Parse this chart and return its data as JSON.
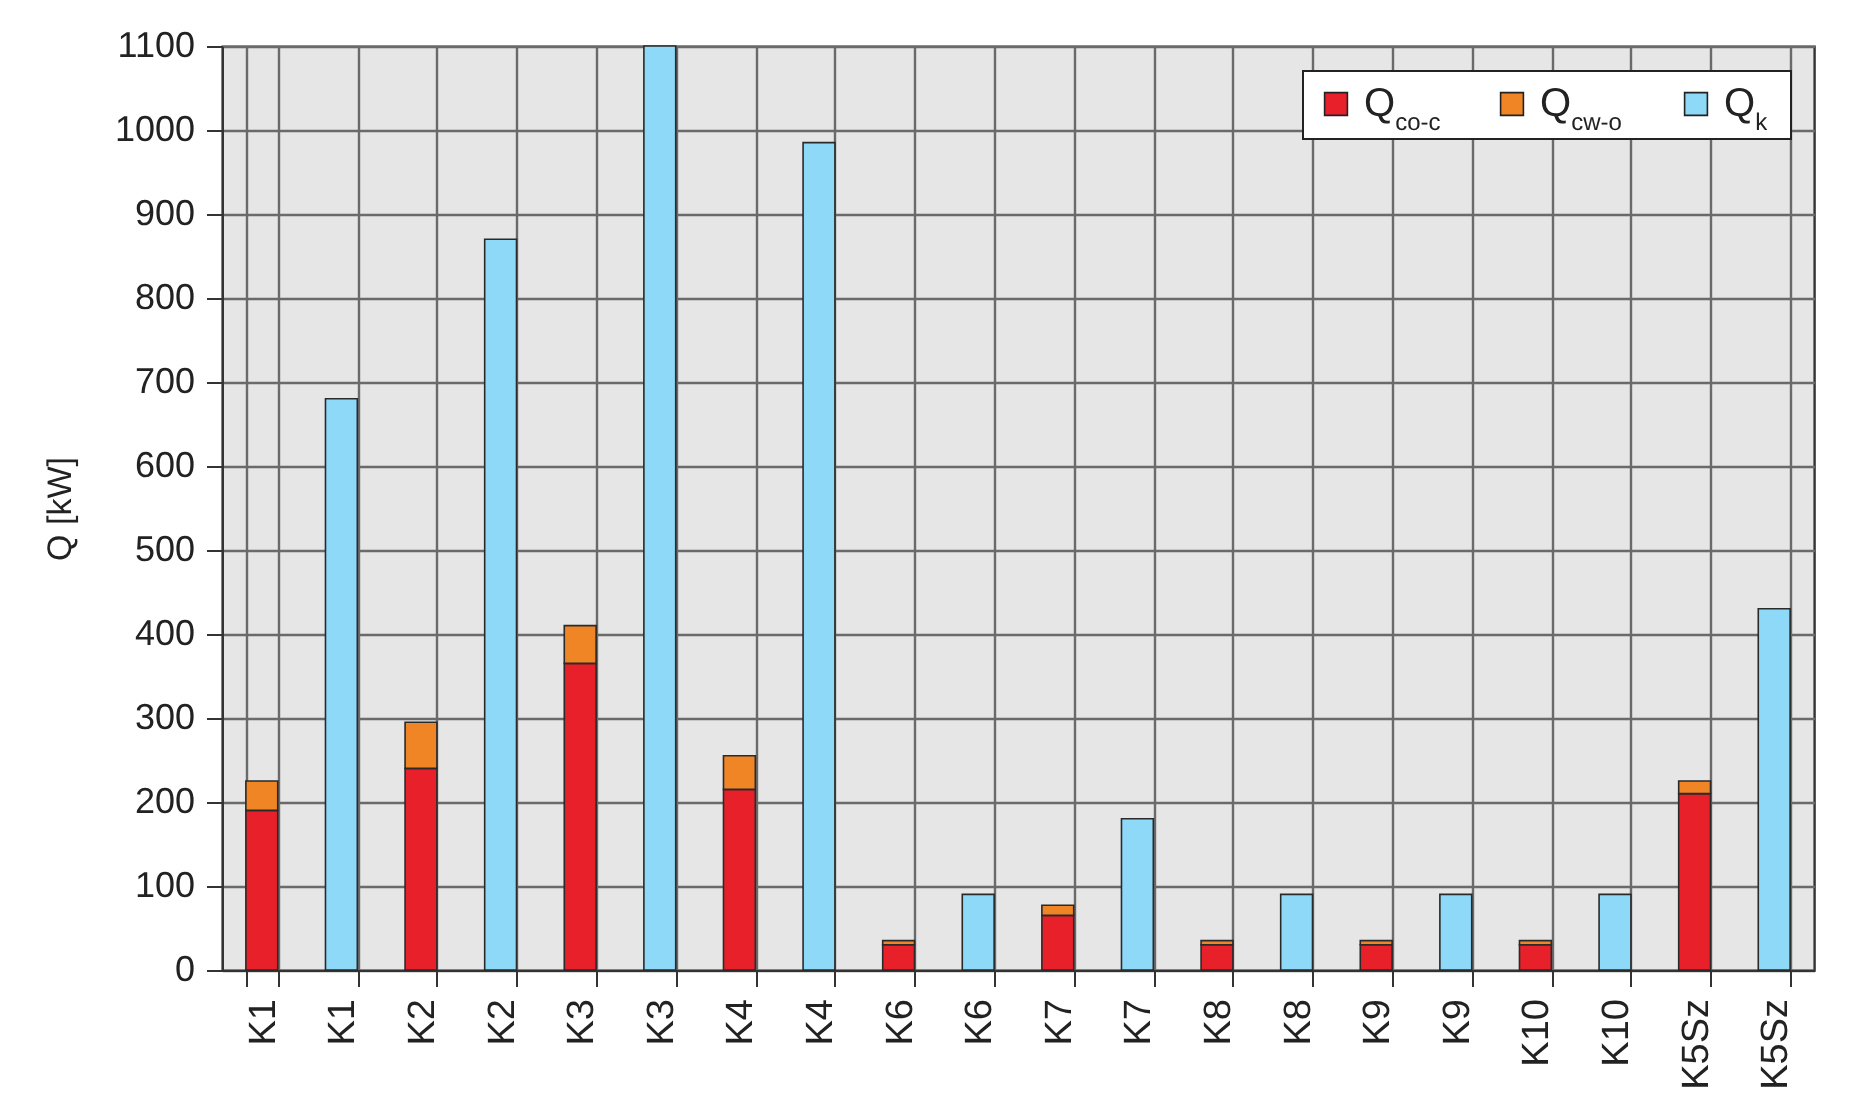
{
  "chart_data": {
    "type": "bar",
    "categories": [
      "K1",
      "K1",
      "K2",
      "K2",
      "K3",
      "K3",
      "K4",
      "K4",
      "K6",
      "K6",
      "K7",
      "K7",
      "K8",
      "K8",
      "K9",
      "K9",
      "K10",
      "K10",
      "K5Sz",
      "K5Sz"
    ],
    "stacked": true,
    "series": [
      {
        "name": "Q$_{co-c}$",
        "color": "#e8202a",
        "values": [
          190,
          null,
          240,
          null,
          365,
          null,
          215,
          null,
          30,
          null,
          65,
          null,
          30,
          null,
          30,
          null,
          30,
          null,
          210,
          null
        ]
      },
      {
        "name": "Q$_{cw-o}$",
        "color": "#f08526",
        "values": [
          35,
          null,
          55,
          null,
          45,
          null,
          40,
          null,
          5,
          null,
          12,
          null,
          5,
          null,
          5,
          null,
          5,
          null,
          15,
          null
        ]
      },
      {
        "name": "Q$_{k}$",
        "color": "#8ed8f8",
        "values": [
          null,
          680,
          null,
          870,
          null,
          1100,
          null,
          985,
          null,
          90,
          null,
          180,
          null,
          90,
          null,
          90,
          null,
          90,
          null,
          430
        ]
      }
    ],
    "ylabel": "Q [kW]",
    "ylim": [
      0,
      1100
    ],
    "yticks": [
      0,
      100,
      200,
      300,
      400,
      500,
      600,
      700,
      800,
      900,
      1000,
      1100
    ],
    "grid": true,
    "legend": "top right"
  }
}
